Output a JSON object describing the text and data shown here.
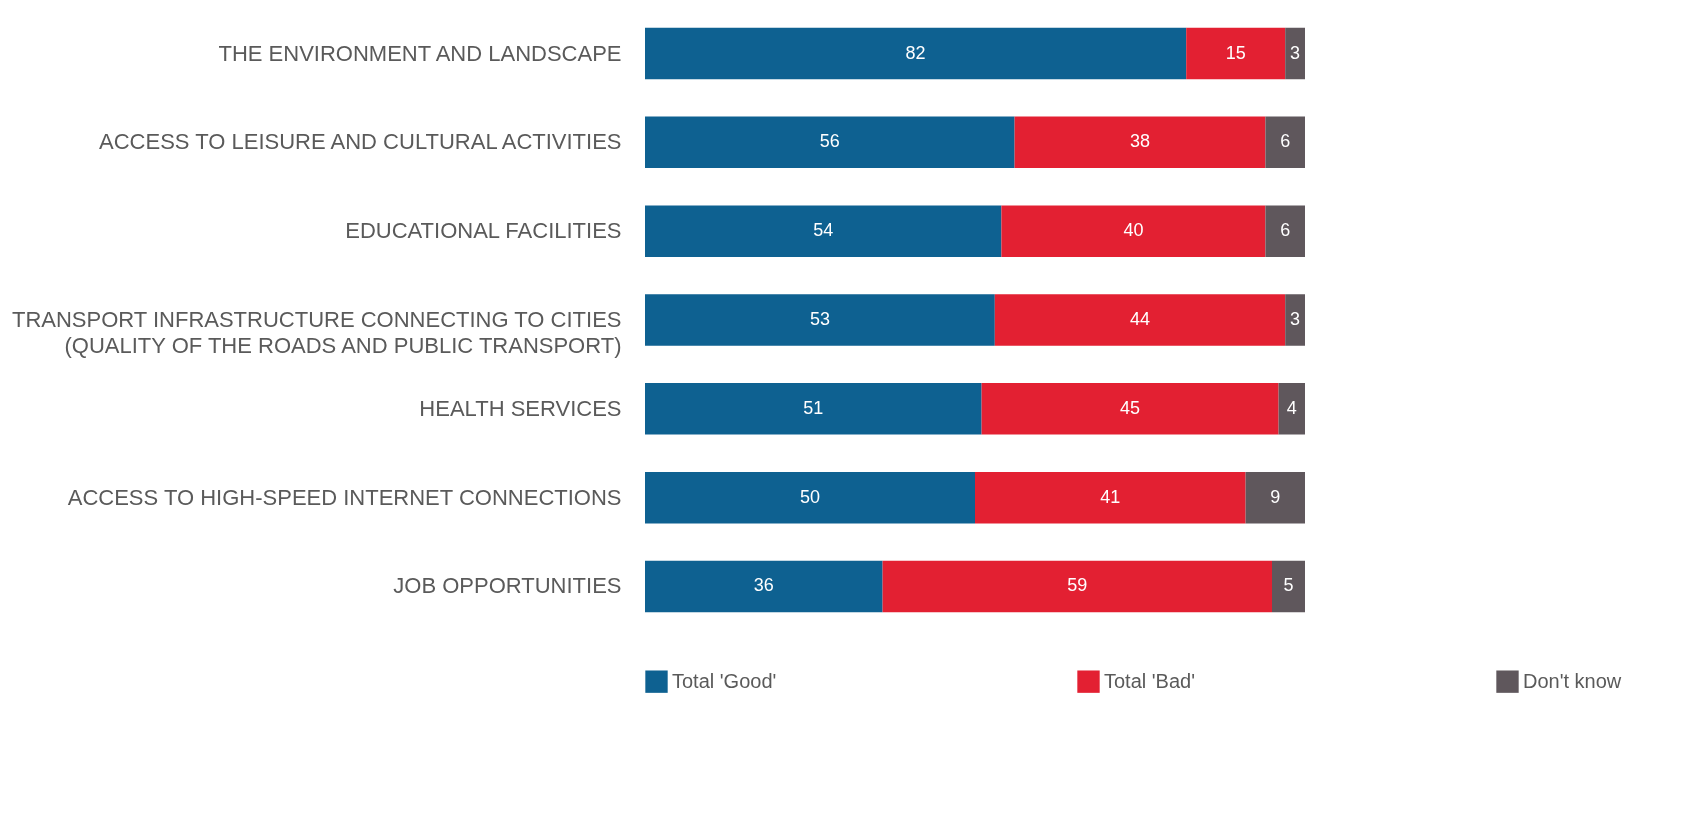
{
  "chart_data": {
    "type": "bar",
    "orientation": "horizontal",
    "stacked": true,
    "data_labels": true,
    "legend": "bottom",
    "categories": [
      "THE ENVIRONMENT AND LANDSCAPE",
      "ACCESS TO LEISURE AND CULTURAL ACTIVITIES",
      "EDUCATIONAL FACILITIES",
      "TRANSPORT INFRASTRUCTURE CONNECTING TO CITIES (QUALITY OF THE ROADS AND PUBLIC TRANSPORT)",
      "HEALTH SERVICES",
      "ACCESS TO HIGH-SPEED INTERNET CONNECTIONS",
      "JOB OPPORTUNITIES"
    ],
    "series": [
      {
        "name": "Total 'Good'",
        "color": "#0e6191",
        "values": [
          82,
          56,
          54,
          53,
          51,
          50,
          36
        ]
      },
      {
        "name": "Total 'Bad'",
        "color": "#e32032",
        "values": [
          15,
          38,
          40,
          44,
          45,
          41,
          59
        ]
      },
      {
        "name": "Don't know",
        "color": "#5f575c",
        "values": [
          3,
          6,
          6,
          3,
          4,
          9,
          5
        ]
      }
    ]
  }
}
